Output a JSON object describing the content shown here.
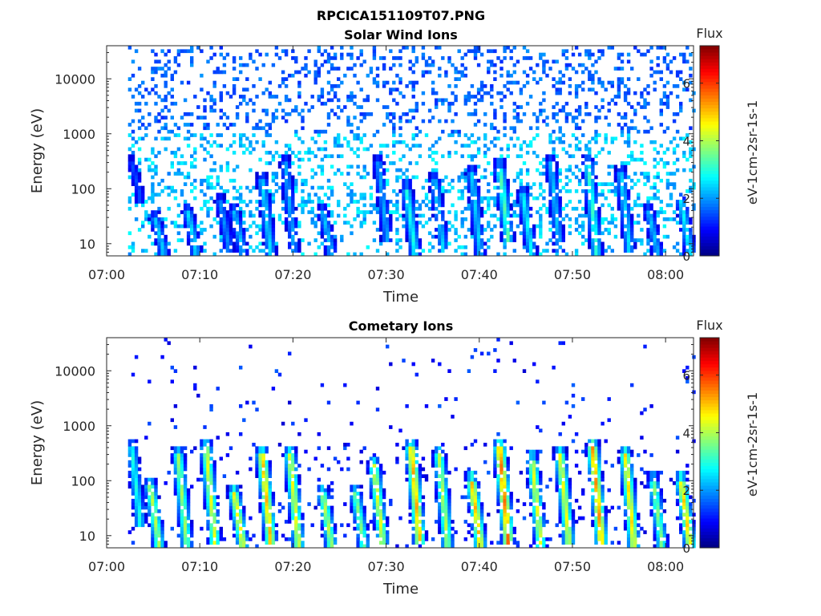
{
  "figure": {
    "title": "RPCICA151109T07.PNG"
  },
  "chart_data": [
    {
      "type": "heatmap",
      "title": "Solar Wind Ions",
      "xlabel": "Time",
      "ylabel": "Energy (eV)",
      "y_scale": "log",
      "xlim": [
        "07:00",
        "08:03"
      ],
      "ylim": [
        6,
        40000
      ],
      "x_ticks": [
        "07:00",
        "07:10",
        "07:20",
        "07:30",
        "07:40",
        "07:50",
        "08:00"
      ],
      "y_ticks": [
        "10",
        "100",
        "1000",
        "10000"
      ],
      "colorbar": {
        "title": "Flux",
        "label": "eV-1cm-2sr-1s-1",
        "range": [
          0,
          7.3
        ],
        "ticks": [
          "0",
          "2",
          "4",
          "6"
        ],
        "colormap": "jet"
      },
      "bursts": [
        {
          "t": "07:02.5",
          "lo": 80,
          "hi": 300,
          "flux": 1.5
        },
        {
          "t": "07:05",
          "lo": 8,
          "hi": 30,
          "flux": 2.5
        },
        {
          "t": "07:08.5",
          "lo": 8,
          "hi": 40,
          "flux": 2.6
        },
        {
          "t": "07:12",
          "lo": 10,
          "hi": 60,
          "flux": 2.0
        },
        {
          "t": "07:13.5",
          "lo": 8,
          "hi": 40,
          "flux": 2.4
        },
        {
          "t": "07:16.5",
          "lo": 8,
          "hi": 150,
          "flux": 2.6
        },
        {
          "t": "07:19",
          "lo": 10,
          "hi": 300,
          "flux": 2.2
        },
        {
          "t": "07:23",
          "lo": 8,
          "hi": 40,
          "flux": 2.4
        },
        {
          "t": "07:29",
          "lo": 15,
          "hi": 300,
          "flux": 2.2
        },
        {
          "t": "07:32",
          "lo": 8,
          "hi": 100,
          "flux": 3.0
        },
        {
          "t": "07:35",
          "lo": 10,
          "hi": 150,
          "flux": 2.5
        },
        {
          "t": "07:39",
          "lo": 8,
          "hi": 200,
          "flux": 2.5
        },
        {
          "t": "07:42",
          "lo": 15,
          "hi": 250,
          "flux": 3.4
        },
        {
          "t": "07:44.5",
          "lo": 8,
          "hi": 80,
          "flux": 2.8
        },
        {
          "t": "07:47.5",
          "lo": 10,
          "hi": 300,
          "flux": 2.4
        },
        {
          "t": "07:51.5",
          "lo": 8,
          "hi": 300,
          "flux": 3.2
        },
        {
          "t": "07:55",
          "lo": 10,
          "hi": 200,
          "flux": 2.6
        },
        {
          "t": "07:58",
          "lo": 8,
          "hi": 40,
          "flux": 2.4
        },
        {
          "t": "08:01.5",
          "lo": 8,
          "hi": 60,
          "flux": 2.8
        }
      ]
    },
    {
      "type": "heatmap",
      "title": "Cometary Ions",
      "xlabel": "Time",
      "ylabel": "Energy (eV)",
      "y_scale": "log",
      "xlim": [
        "07:00",
        "08:03"
      ],
      "ylim": [
        6,
        40000
      ],
      "x_ticks": [
        "07:00",
        "07:10",
        "07:20",
        "07:30",
        "07:40",
        "07:50",
        "08:00"
      ],
      "y_ticks": [
        "10",
        "100",
        "1000",
        "10000"
      ],
      "colorbar": {
        "title": "Flux",
        "label": "eV-1cm-2sr-1s-1",
        "range": [
          0,
          7.3
        ],
        "ticks": [
          "0",
          "2",
          "4",
          "6"
        ],
        "colormap": "jet"
      },
      "bursts": [
        {
          "t": "07:02.5",
          "lo": 20,
          "hi": 400,
          "flux": 3.0
        },
        {
          "t": "07:04.5",
          "lo": 8,
          "hi": 80,
          "flux": 4.2
        },
        {
          "t": "07:07.5",
          "lo": 8,
          "hi": 300,
          "flux": 4.0
        },
        {
          "t": "07:10.5",
          "lo": 10,
          "hi": 400,
          "flux": 4.5
        },
        {
          "t": "07:13.5",
          "lo": 8,
          "hi": 60,
          "flux": 4.8
        },
        {
          "t": "07:16.5",
          "lo": 10,
          "hi": 300,
          "flux": 5.2
        },
        {
          "t": "07:19.5",
          "lo": 8,
          "hi": 300,
          "flux": 4.6
        },
        {
          "t": "07:23",
          "lo": 8,
          "hi": 60,
          "flux": 4.2
        },
        {
          "t": "07:26.5",
          "lo": 8,
          "hi": 60,
          "flux": 3.8
        },
        {
          "t": "07:28.5",
          "lo": 10,
          "hi": 200,
          "flux": 4.5
        },
        {
          "t": "07:32.5",
          "lo": 10,
          "hi": 400,
          "flux": 5.3
        },
        {
          "t": "07:35.5",
          "lo": 8,
          "hi": 300,
          "flux": 4.2
        },
        {
          "t": "07:39",
          "lo": 8,
          "hi": 100,
          "flux": 5.2
        },
        {
          "t": "07:42",
          "lo": 10,
          "hi": 400,
          "flux": 5.7
        },
        {
          "t": "07:45.5",
          "lo": 8,
          "hi": 250,
          "flux": 4.5
        },
        {
          "t": "07:48.5",
          "lo": 10,
          "hi": 300,
          "flux": 4.6
        },
        {
          "t": "07:52",
          "lo": 10,
          "hi": 400,
          "flux": 5.5
        },
        {
          "t": "07:55.5",
          "lo": 8,
          "hi": 300,
          "flux": 4.9
        },
        {
          "t": "07:58.5",
          "lo": 8,
          "hi": 100,
          "flux": 3.8
        },
        {
          "t": "08:01.5",
          "lo": 8,
          "hi": 100,
          "flux": 5.0
        }
      ]
    }
  ]
}
